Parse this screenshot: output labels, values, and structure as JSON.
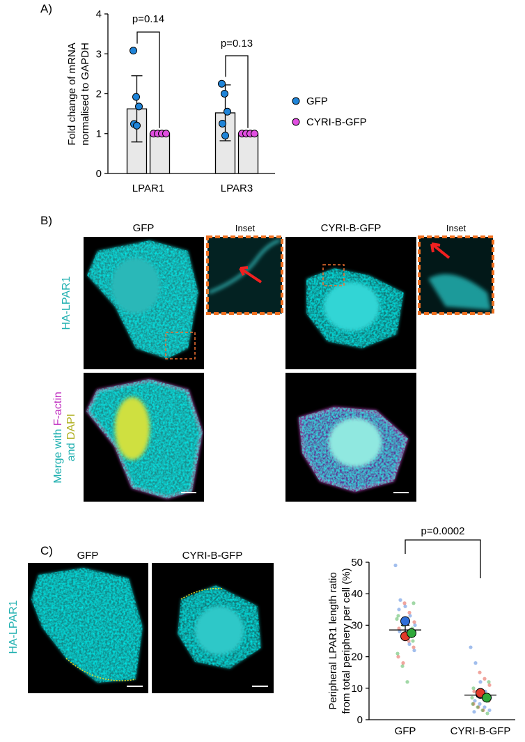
{
  "chart_data": [
    {
      "type": "bar",
      "panel": "A)",
      "ylabel": [
        "Fold change of mRNA",
        "normalised to GAPDH"
      ],
      "categories": [
        "LPAR1",
        "LPAR3"
      ],
      "series": [
        {
          "name": "GFP",
          "color": "#1f84d8",
          "values": [
            1.62,
            1.52
          ],
          "errors": [
            0.83,
            0.7
          ],
          "points": [
            [
              3.08,
              1.92,
              1.68,
              1.24,
              1.2
            ],
            [
              2.25,
              2.0,
              1.55,
              1.25,
              0.95
            ]
          ]
        },
        {
          "name": "CYRI-B-GFP",
          "color": "#e04ee0",
          "values": [
            1,
            1
          ],
          "errors": [
            0,
            0
          ],
          "points": [
            [
              1,
              1,
              1,
              1
            ],
            [
              1,
              1,
              1,
              1
            ]
          ]
        }
      ],
      "ylim": [
        0,
        4
      ],
      "yticks": [
        0,
        1,
        2,
        3,
        4
      ],
      "annotations": [
        "p=0.14",
        "p=0.13"
      ]
    },
    {
      "type": "scatter",
      "panel": "C)",
      "ylabel": [
        "Peripheral LPAR1 length ratio",
        "from total periphery per cell (%)"
      ],
      "categories": [
        "GFP",
        "CYRI-B-GFP"
      ],
      "means": [
        28.5,
        7.8
      ],
      "errors": [
        1.5,
        0.5
      ],
      "series": [
        {
          "color": "#2f6fd8",
          "means": [
            31.3,
            8.2
          ],
          "cells": [
            [
              49,
              38,
              36,
              33,
              30,
              28,
              26,
              24,
              22,
              35
            ],
            [
              23,
              18,
              12,
              9,
              7,
              6,
              5,
              4,
              3,
              2.5
            ]
          ]
        },
        {
          "color": "#e03a2a",
          "means": [
            26.5,
            8.5
          ],
          "cells": [
            [
              37,
              34,
              31,
              29,
              27,
              25,
              23,
              20,
              18,
              26
            ],
            [
              15,
              13,
              11,
              9,
              8,
              7,
              6,
              5,
              4,
              3
            ]
          ]
        },
        {
          "color": "#2fa83a",
          "means": [
            27.5,
            7
          ],
          "cells": [
            [
              37,
              33,
              30,
              28,
              25,
              21,
              17,
              12,
              29,
              32
            ],
            [
              12,
              10,
              9,
              8,
              6,
              5,
              4,
              3,
              2,
              7
            ]
          ]
        }
      ],
      "ylim": [
        0,
        50
      ],
      "yticks": [
        0,
        10,
        20,
        30,
        40,
        50
      ],
      "annotations": [
        "p=0.0002"
      ]
    }
  ],
  "panel_b": {
    "label": "B)",
    "columns": [
      "GFP",
      "Inset",
      "CYRI-B-GFP",
      "Inset"
    ],
    "row_label": "HA-LPAR1",
    "merge_label": [
      "Merge with ",
      "F-actin",
      "and ",
      "DAPI"
    ]
  },
  "panel_c": {
    "columns": [
      "GFP",
      "CYRI-B-GFP"
    ],
    "row_label": "HA-LPAR1"
  }
}
